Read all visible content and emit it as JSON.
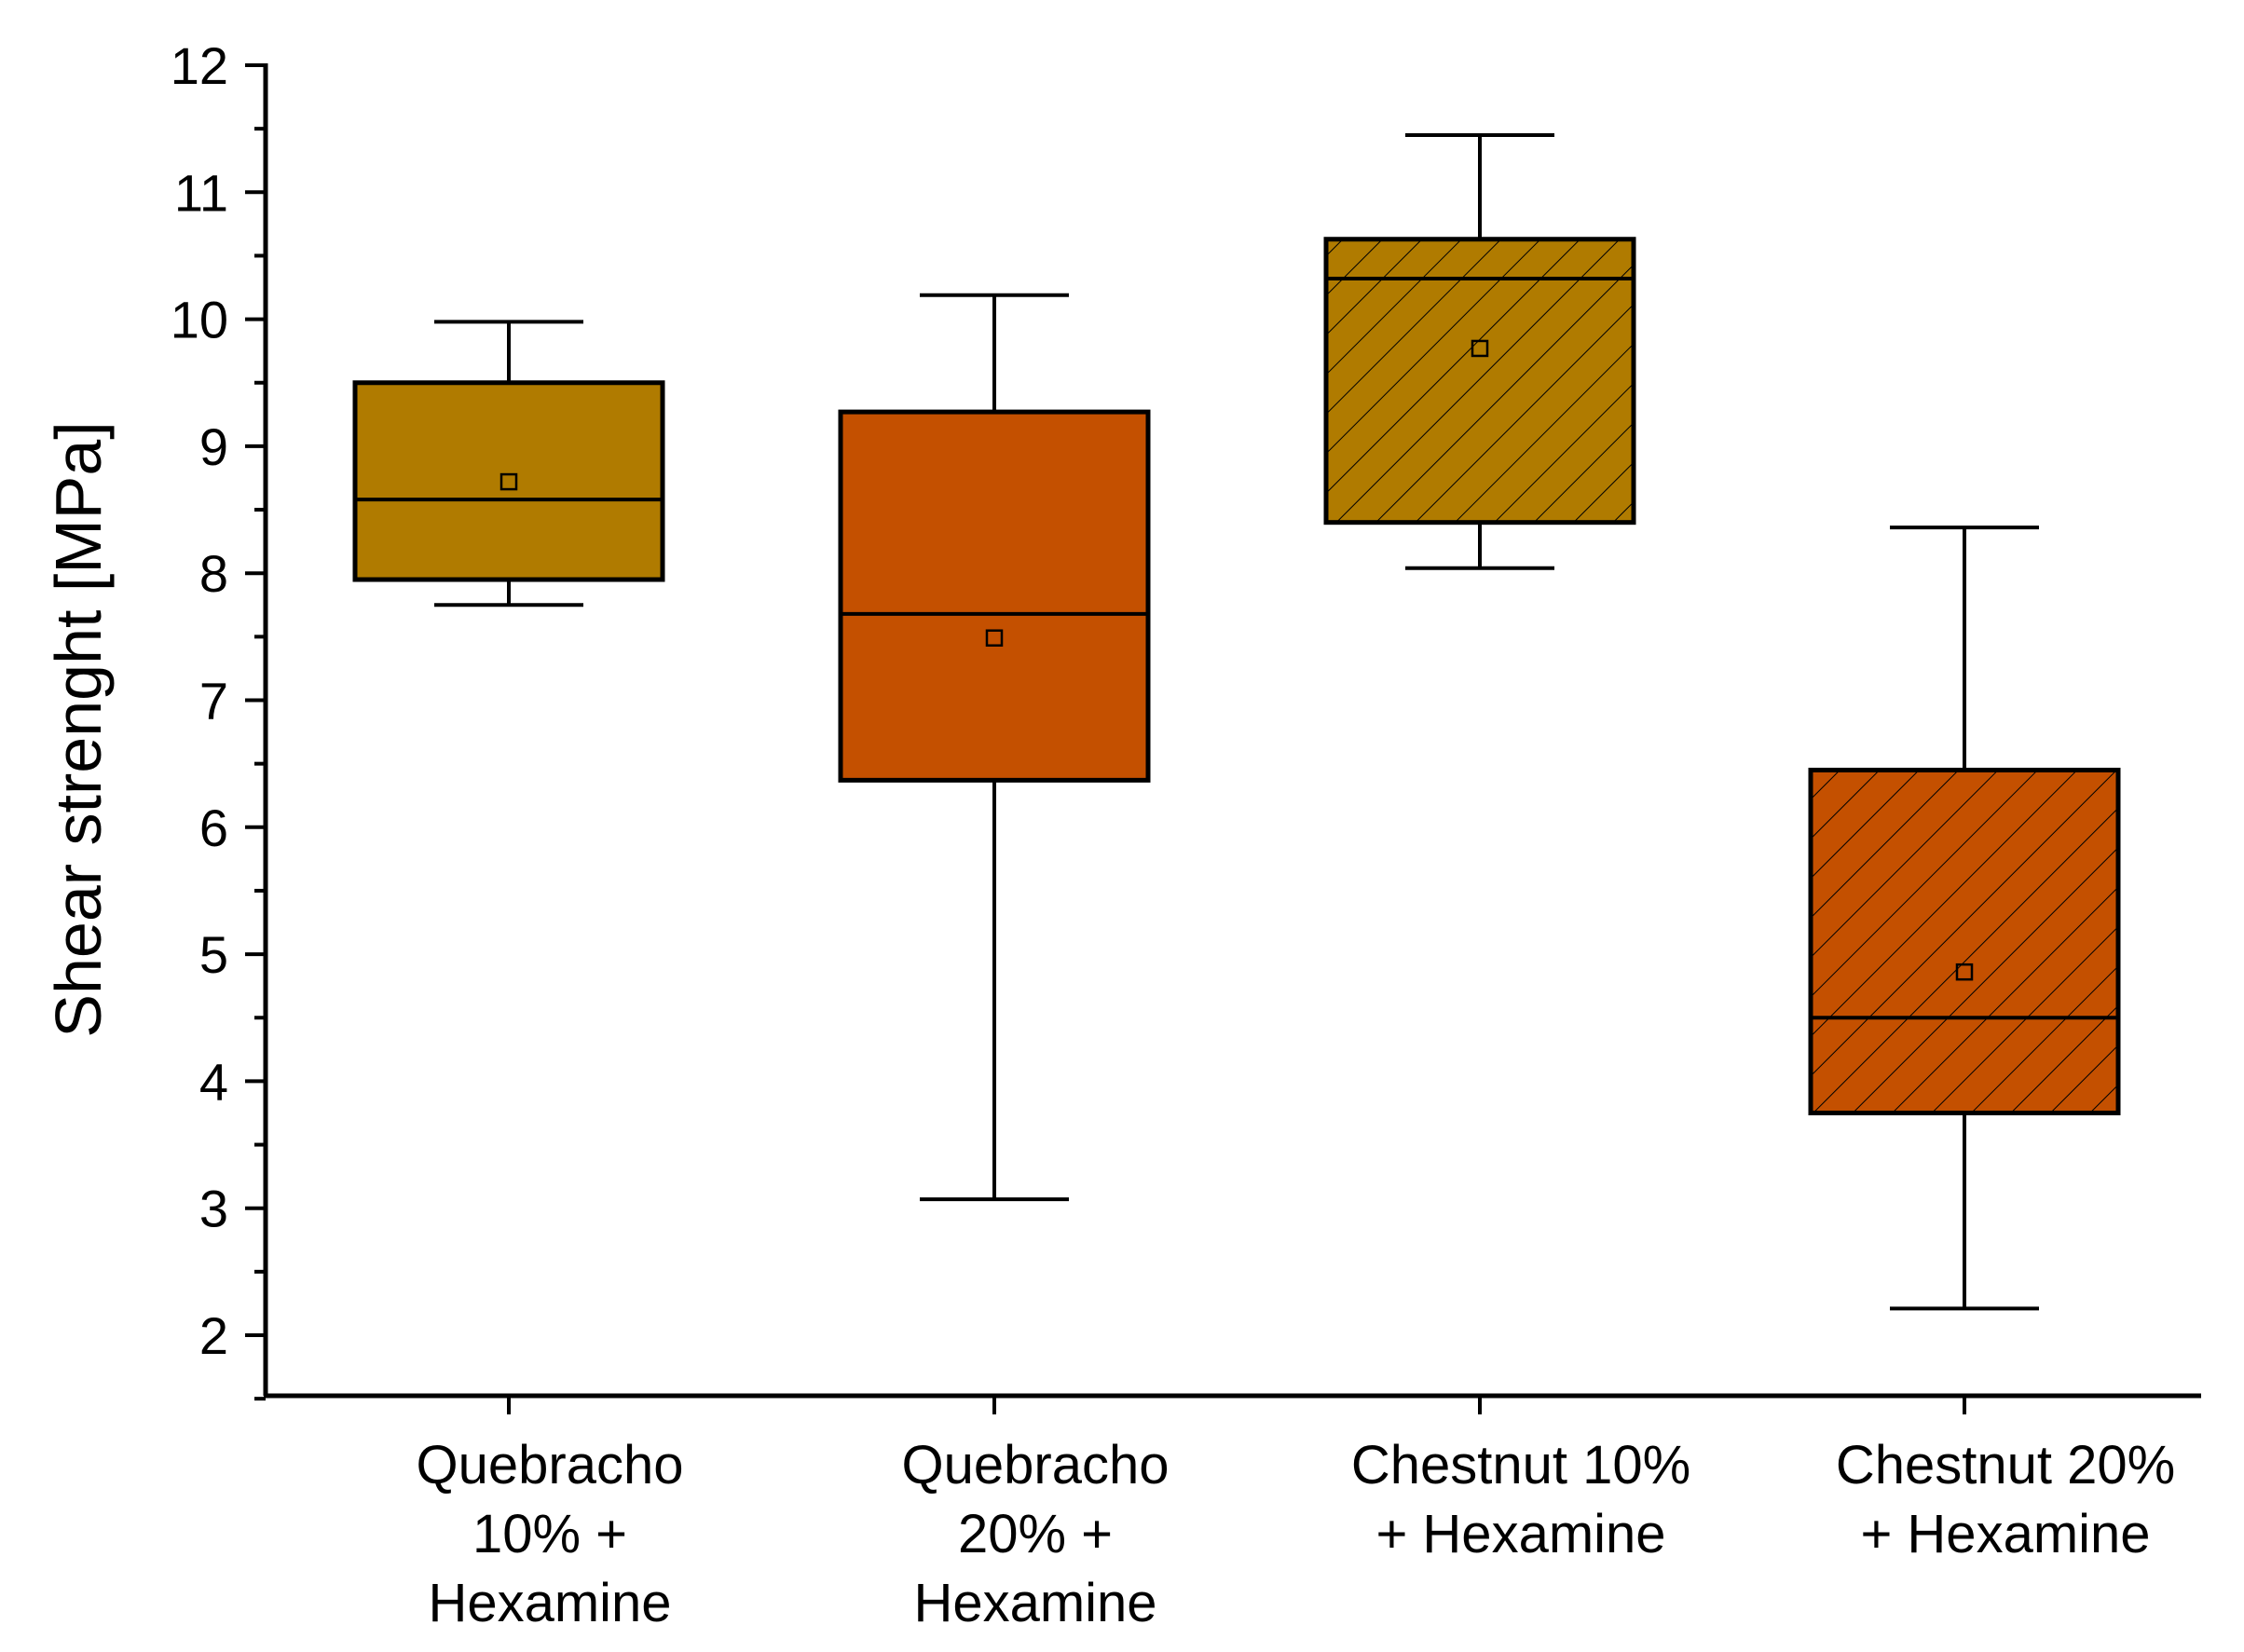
{
  "chart_data": {
    "type": "box",
    "title": "",
    "xlabel": "",
    "ylabel": "Shear strenght [MPa]",
    "ylim": [
      1.5,
      12
    ],
    "yticks": [
      2,
      3,
      4,
      5,
      6,
      7,
      8,
      9,
      10,
      11,
      12
    ],
    "categories": [
      [
        "Quebracho",
        "10% +",
        "Hexamine"
      ],
      [
        "Quebracho",
        "20% +",
        "Hexamine"
      ],
      [
        "Chestnut 10%",
        "+ Hexamine"
      ],
      [
        "Chestnut 20%",
        "+ Hexamine"
      ]
    ],
    "boxes": [
      {
        "whisker_low": 7.75,
        "q1": 7.95,
        "median": 8.58,
        "q3": 9.5,
        "whisker_high": 9.98,
        "mean": 8.72,
        "color": "#b07b00",
        "hatched": false
      },
      {
        "whisker_low": 3.07,
        "q1": 6.37,
        "median": 7.68,
        "q3": 9.27,
        "whisker_high": 10.19,
        "mean": 7.49,
        "color": "#c45000",
        "hatched": false
      },
      {
        "whisker_low": 8.04,
        "q1": 8.4,
        "median": 10.32,
        "q3": 10.63,
        "whisker_high": 11.45,
        "mean": 9.77,
        "color": "#b07b00",
        "hatched": true
      },
      {
        "whisker_low": 2.21,
        "q1": 3.75,
        "median": 4.5,
        "q3": 6.45,
        "whisker_high": 8.36,
        "mean": 4.86,
        "color": "#c45000",
        "hatched": true
      }
    ]
  }
}
